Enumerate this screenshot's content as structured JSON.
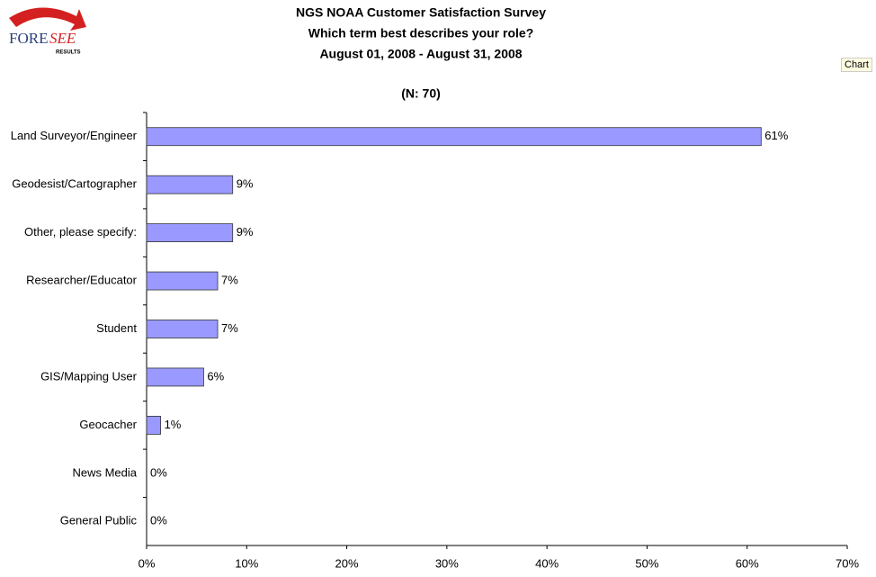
{
  "logo": {
    "fore": "FORE",
    "see": "SEE",
    "results": "RESULTS"
  },
  "button": "Chart",
  "chart_data": {
    "type": "hbar",
    "title": "NGS NOAA Customer Satisfaction Survey",
    "subtitle": "Which term best describes your role?",
    "date_range": "August 01, 2008 - August 31, 2008",
    "sample_size": "(N: 70)",
    "categories": [
      "Land Surveyor/Engineer",
      "Geodesist/Cartographer",
      "Other, please specify:",
      "Researcher/Educator",
      "Student",
      "GIS/Mapping User",
      "Geocacher",
      "News Media",
      "General Public"
    ],
    "values": [
      61.4,
      8.6,
      8.6,
      7.1,
      7.1,
      5.7,
      1.4,
      0,
      0
    ],
    "value_labels": [
      "61%",
      "9%",
      "9%",
      "7%",
      "7%",
      "6%",
      "1%",
      "0%",
      "0%"
    ],
    "color": "#9999ff",
    "xlim": [
      0,
      70
    ],
    "xticks": [
      {
        "value": 0,
        "label": "0%"
      },
      {
        "value": 10,
        "label": "10%"
      },
      {
        "value": 20,
        "label": "20%"
      },
      {
        "value": 30,
        "label": "30%"
      },
      {
        "value": 40,
        "label": "40%"
      },
      {
        "value": 50,
        "label": "50%"
      },
      {
        "value": 60,
        "label": "60%"
      },
      {
        "value": 70,
        "label": "70%"
      }
    ]
  }
}
